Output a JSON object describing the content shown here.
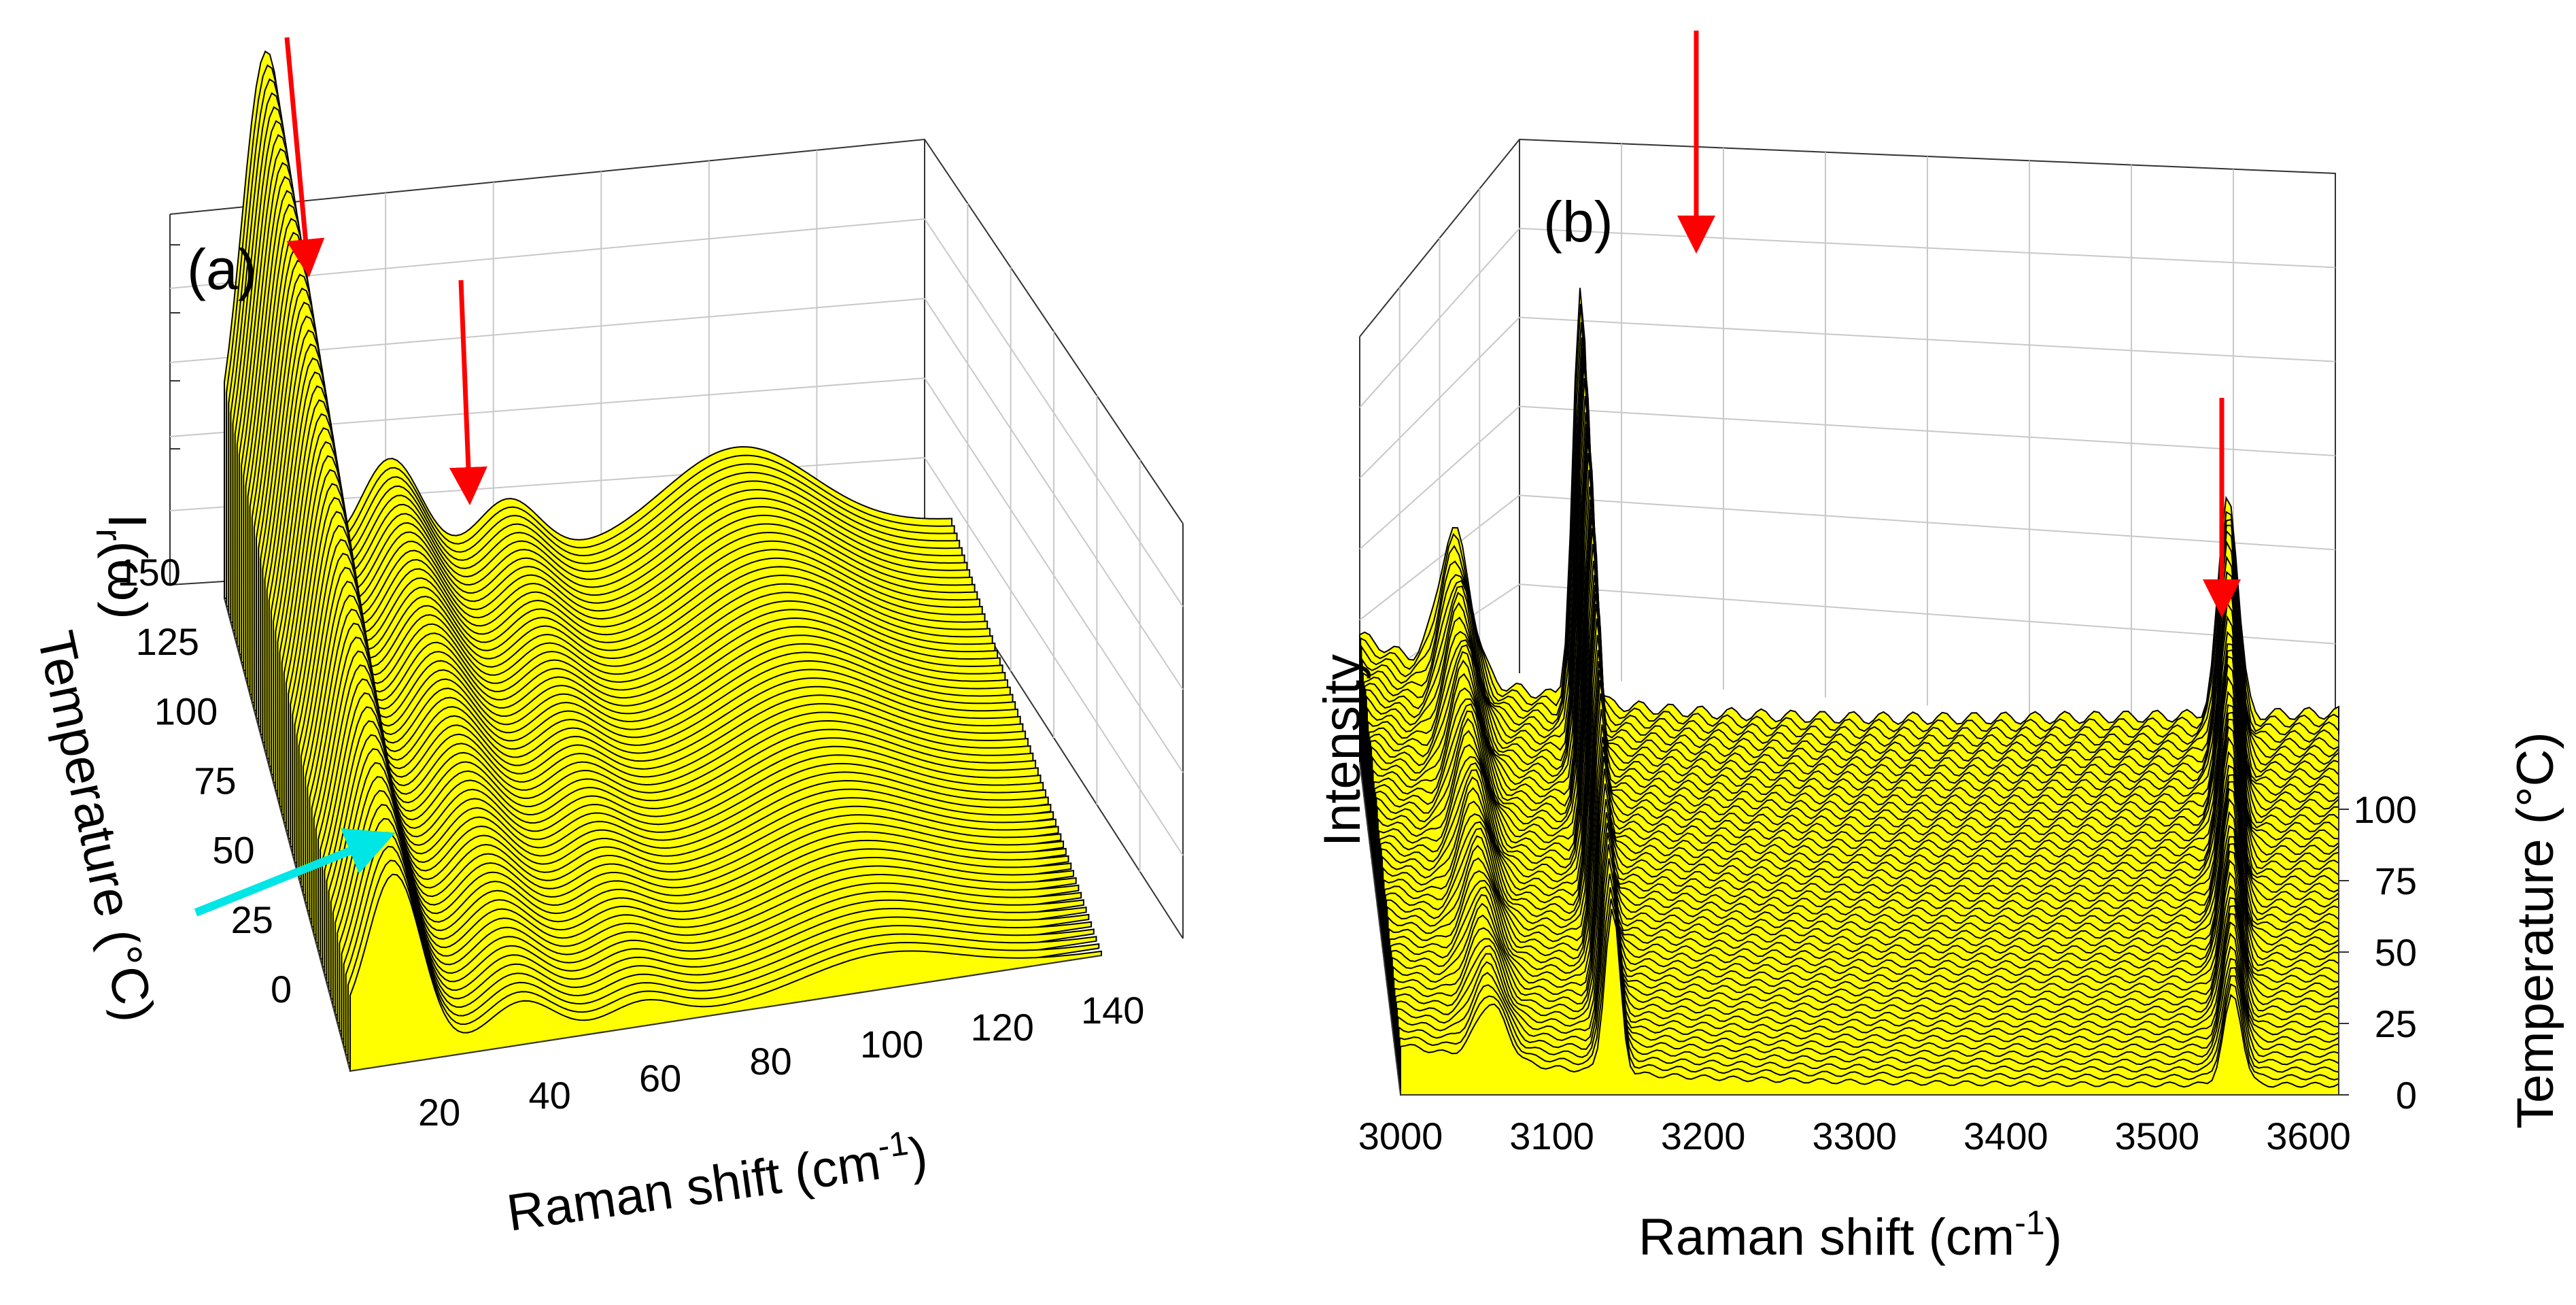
{
  "chart_data": [
    {
      "panel": "(a)",
      "type": "3d-waterfall",
      "xlabel": "Raman shift (cm",
      "xlabel_sup": "-1",
      "xlabel_end": ")",
      "ylabel": "Temperature (°C)",
      "zlabel": "I",
      "zlabel_sub": "r",
      "zlabel_end": "(ω)",
      "x_ticks": [
        "20",
        "40",
        "60",
        "80",
        "100",
        "120",
        "140"
      ],
      "y_ticks": [
        "0",
        "25",
        "50",
        "75",
        "100",
        "125",
        "150"
      ],
      "x_range": [
        4,
        140
      ],
      "y_range": [
        -10,
        160
      ],
      "peaks_cm1": [
        12,
        35,
        57,
        100
      ],
      "peak_heights": [
        1.0,
        0.22,
        0.12,
        0.18
      ],
      "highlighted_peaks_cm1": [
        12,
        35
      ],
      "annotation": "cyan arrow marking low-frequency background",
      "line_color": "#000000",
      "fill_color": "#ffff00",
      "arrow_color": "#ff0000",
      "annotation_color": "#00e5e5"
    },
    {
      "panel": "(b)",
      "type": "3d-waterfall",
      "xlabel": "Raman shift (cm",
      "xlabel_sup": "-1",
      "xlabel_end": ")",
      "ylabel": "Temperature (°C)",
      "zlabel": "Intensity",
      "x_ticks": [
        "3000",
        "3100",
        "3200",
        "3300",
        "3400",
        "3500",
        "3600"
      ],
      "y_ticks": [
        "0",
        "25",
        "50",
        "75",
        "100"
      ],
      "x_range": [
        3000,
        3620
      ],
      "y_range": [
        0,
        125
      ],
      "peaks_cm1": [
        3060,
        3140,
        3550
      ],
      "peak_heights": [
        0.35,
        1.0,
        0.55
      ],
      "highlighted_peaks_cm1": [
        3140,
        3550
      ],
      "line_color": "#000000",
      "fill_color": "#ffff00",
      "arrow_color": "#ff0000"
    }
  ]
}
